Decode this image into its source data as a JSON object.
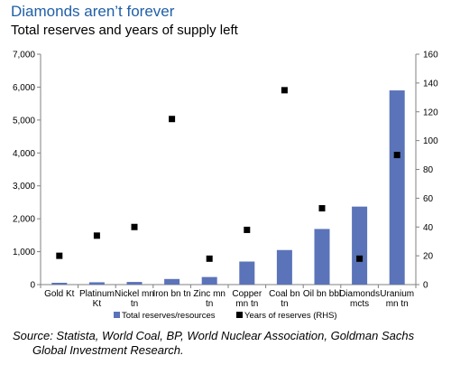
{
  "header": {
    "title": "Diamonds aren’t forever",
    "subtitle": "Total reserves and years of supply left"
  },
  "source": {
    "line1": "Source: Statista, World Coal, BP, World Nuclear Association, Goldman Sachs",
    "line2": "Global Investment Research."
  },
  "chart_data": {
    "type": "bar",
    "categories": [
      [
        "Gold Kt"
      ],
      [
        "Platinum",
        "Kt"
      ],
      [
        "Nickel mn",
        "tn"
      ],
      [
        "Iron bn tn"
      ],
      [
        "Zinc mn",
        "tn"
      ],
      [
        "Copper",
        "mn tn"
      ],
      [
        "Coal bn",
        "tn"
      ],
      [
        "Oil bn bbl"
      ],
      [
        "Diamonds",
        "mcts"
      ],
      [
        "Uranium",
        "mn tn"
      ]
    ],
    "series": [
      {
        "name": "Total reserves/resources",
        "kind": "bar",
        "axis": "left",
        "color": "#5b73b8",
        "values": [
          55,
          70,
          80,
          170,
          230,
          700,
          1050,
          1690,
          2370,
          5900
        ]
      },
      {
        "name": "Years of reserves (RHS)",
        "kind": "scatter",
        "axis": "right",
        "color": "#000000",
        "values": [
          20,
          34,
          40,
          115,
          18,
          38,
          135,
          53,
          18,
          90
        ]
      }
    ],
    "y_left": {
      "min": 0,
      "max": 7000,
      "ticks": [
        "0",
        "1,000",
        "2,000",
        "3,000",
        "4,000",
        "5,000",
        "6,000",
        "7,000"
      ]
    },
    "y_right": {
      "min": 0,
      "max": 160,
      "ticks": [
        "0",
        "20",
        "40",
        "60",
        "80",
        "100",
        "120",
        "140",
        "160"
      ]
    },
    "grid": false,
    "legend_position": "bottom"
  }
}
